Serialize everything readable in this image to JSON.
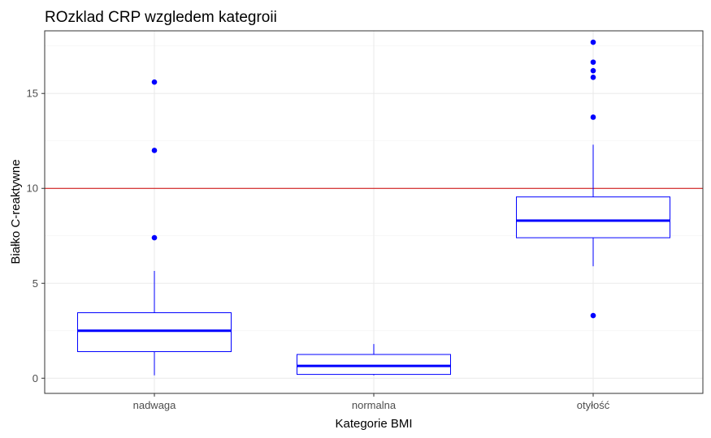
{
  "chart_data": {
    "type": "box",
    "title": "ROzklad CRP wzgledem kategroii",
    "xlabel": "Kategorie BMI",
    "ylabel": "Białko C-reaktywne",
    "categories": [
      "nadwaga",
      "normalna",
      "otyłość"
    ],
    "ylim": [
      -0.8,
      18.3
    ],
    "yticks": [
      0,
      5,
      10,
      15
    ],
    "grid": true,
    "reference_line": {
      "y": 10,
      "color": "#cc0000"
    },
    "box_color": "#0000ff",
    "boxes": [
      {
        "category": "nadwaga",
        "whisker_low": 0.15,
        "q1": 1.4,
        "median": 2.5,
        "q3": 3.45,
        "whisker_high": 5.65,
        "outliers": [
          7.4,
          12.0,
          15.6
        ]
      },
      {
        "category": "normalna",
        "whisker_low": 0.15,
        "q1": 0.2,
        "median": 0.65,
        "q3": 1.25,
        "whisker_high": 1.8,
        "outliers": []
      },
      {
        "category": "otyłość",
        "whisker_low": 5.9,
        "q1": 7.4,
        "median": 8.3,
        "q3": 9.55,
        "whisker_high": 12.3,
        "outliers": [
          3.3,
          13.75,
          15.85,
          16.2,
          16.65,
          17.7
        ]
      }
    ]
  }
}
